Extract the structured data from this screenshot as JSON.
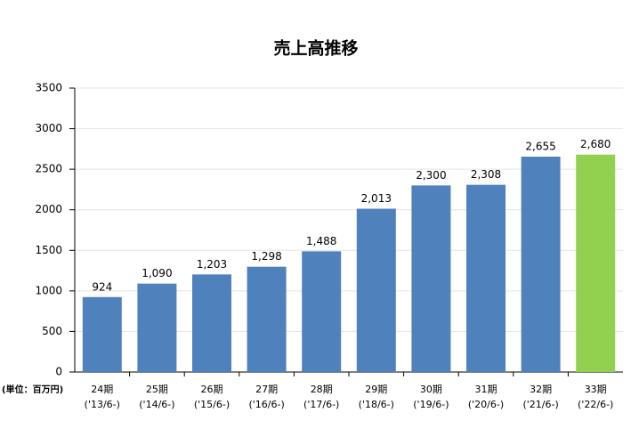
{
  "chart_data": {
    "type": "bar",
    "title": "売上高推移",
    "unit_label": "(単位：百万円)",
    "categories": [
      [
        "24期",
        "('13/6-)"
      ],
      [
        "25期",
        "('14/6-)"
      ],
      [
        "26期",
        "('15/6-)"
      ],
      [
        "27期",
        "('16/6-)"
      ],
      [
        "28期",
        "('17/6-)"
      ],
      [
        "29期",
        "('18/6-)"
      ],
      [
        "30期",
        "('19/6-)"
      ],
      [
        "31期",
        "('20/6-)"
      ],
      [
        "32期",
        "('21/6-)"
      ],
      [
        "33期",
        "('22/6-)"
      ]
    ],
    "values": [
      924,
      1090,
      1203,
      1298,
      1488,
      2013,
      2300,
      2308,
      2655,
      2680
    ],
    "value_labels": [
      "924",
      "1,090",
      "1,203",
      "1,298",
      "1,488",
      "2,013",
      "2,300",
      "2,308",
      "2,655",
      "2,680"
    ],
    "colors": [
      "#4f81bd",
      "#4f81bd",
      "#4f81bd",
      "#4f81bd",
      "#4f81bd",
      "#4f81bd",
      "#4f81bd",
      "#4f81bd",
      "#4f81bd",
      "#92d050"
    ],
    "ylim": [
      0,
      3500
    ],
    "yticks": [
      0,
      500,
      1000,
      1500,
      2000,
      2500,
      3000,
      3500
    ],
    "grid": true
  }
}
